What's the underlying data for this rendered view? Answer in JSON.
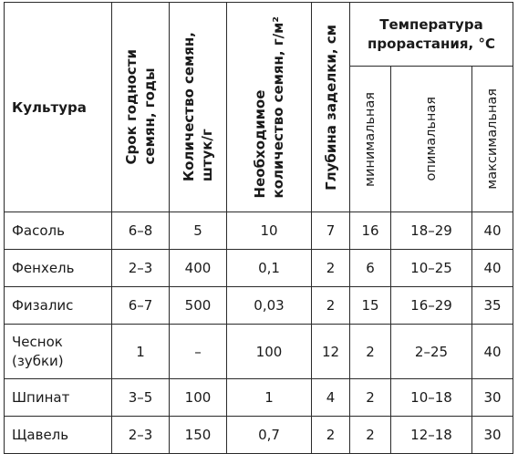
{
  "table": {
    "headers": {
      "crop": "Культура",
      "shelf_life": "Срок годности\nсемян, годы",
      "seed_count": "Количество семян,\nштук/г",
      "seed_amount": "Необходимое\nколичество семян, г/м²",
      "depth": "Глубина заделки, см",
      "temp_group": "Температура прорастания, °С",
      "temp_min": "минимальная",
      "temp_opt": "опимальная",
      "temp_max": "максимальная"
    },
    "rows": [
      {
        "crop": "Фасоль",
        "shelf": "6–8",
        "count": "5",
        "amount": "10",
        "depth": "7",
        "tmin": "16",
        "topt": "18–29",
        "tmax": "40"
      },
      {
        "crop": "Фенхель",
        "shelf": "2–3",
        "count": "400",
        "amount": "0,1",
        "depth": "2",
        "tmin": "6",
        "topt": "10–25",
        "tmax": "40"
      },
      {
        "crop": "Физалис",
        "shelf": "6–7",
        "count": "500",
        "amount": "0,03",
        "depth": "2",
        "tmin": "15",
        "topt": "16–29",
        "tmax": "35"
      },
      {
        "crop": "Чеснок\n(зубки)",
        "shelf": "1",
        "count": "–",
        "amount": "100",
        "depth": "12",
        "tmin": "2",
        "topt": "2–25",
        "tmax": "40"
      },
      {
        "crop": "Шпинат",
        "shelf": "3–5",
        "count": "100",
        "amount": "1",
        "depth": "4",
        "tmin": "2",
        "topt": "10–18",
        "tmax": "30"
      },
      {
        "crop": "Щавель",
        "shelf": "2–3",
        "count": "150",
        "amount": "0,7",
        "depth": "2",
        "tmin": "2",
        "topt": "12–18",
        "tmax": "30"
      }
    ]
  }
}
